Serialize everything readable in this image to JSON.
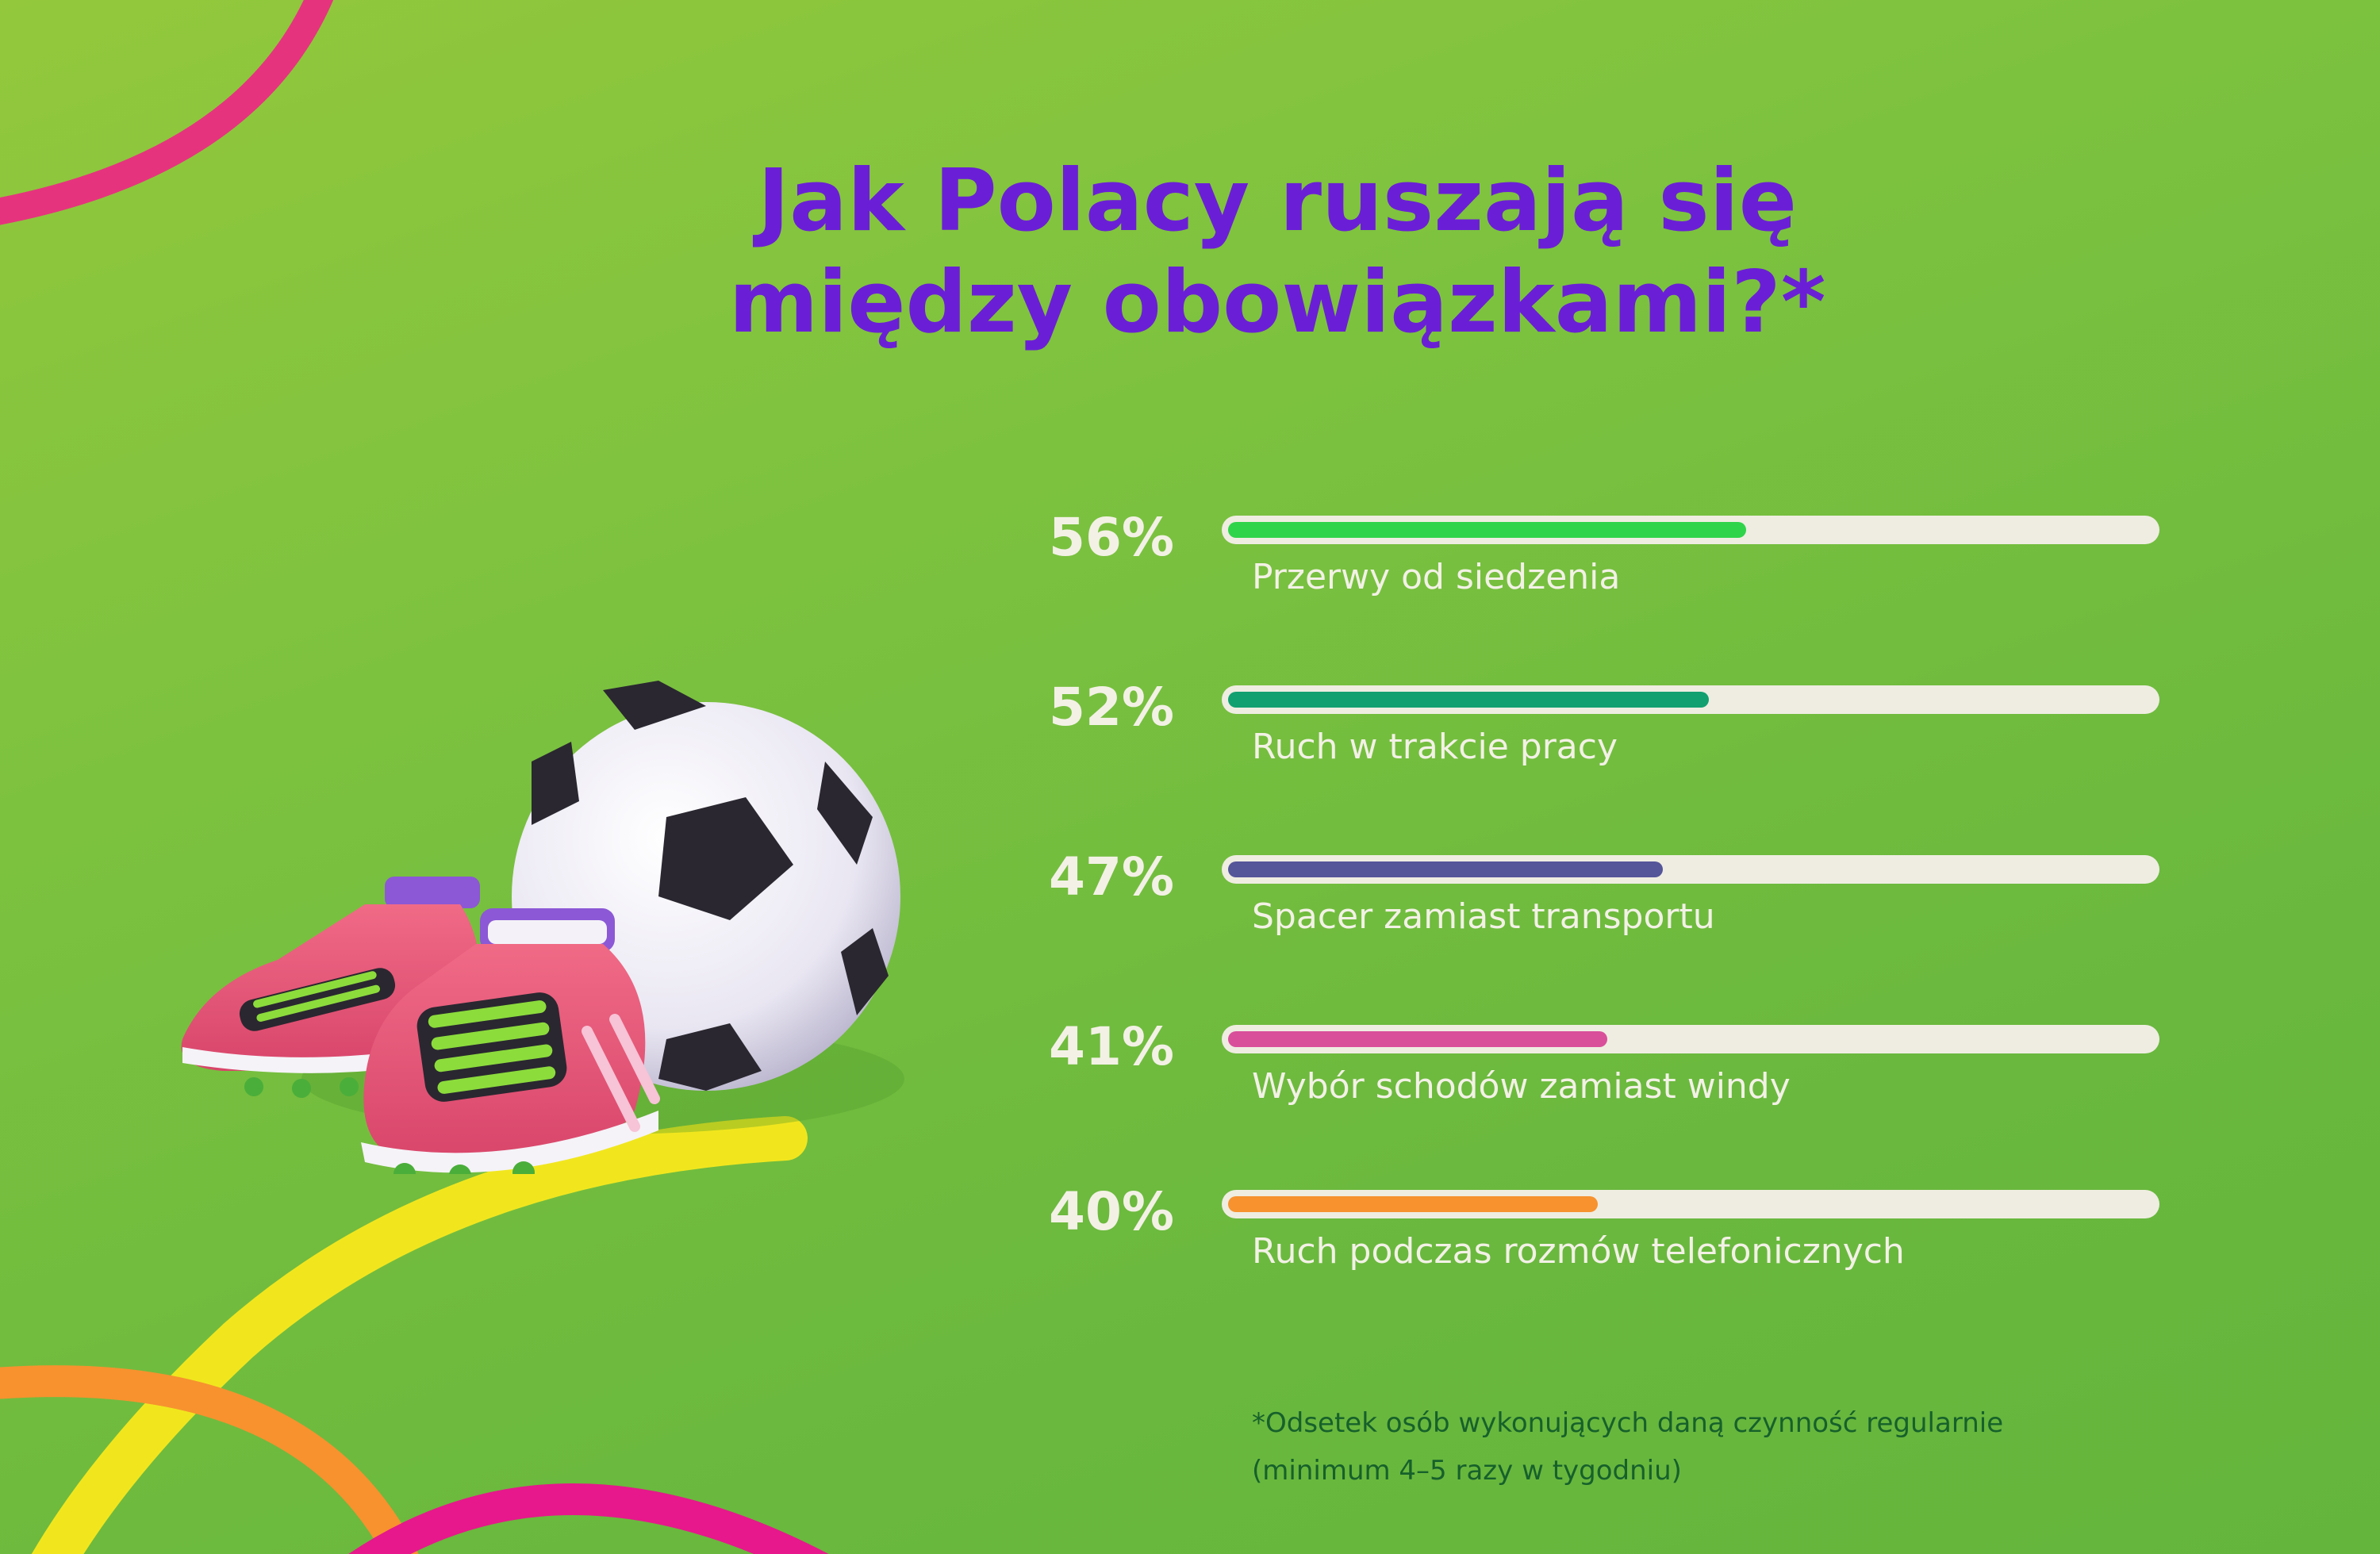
{
  "title": {
    "line1": "Jak Polacy ruszają się",
    "line2": "między obowiązkami?*"
  },
  "chart_data": {
    "type": "bar",
    "orientation": "horizontal",
    "categories": [
      "Przerwy od siedzenia",
      "Ruch w trakcie pracy",
      "Spacer zamiast transportu",
      "Wybór schodów zamiast windy",
      "Ruch podczas rozmów telefonicznych"
    ],
    "values": [
      56,
      52,
      47,
      41,
      40
    ],
    "value_labels": [
      "56%",
      "52%",
      "47%",
      "41%",
      "40%"
    ],
    "bar_colors": [
      "#2fd44a",
      "#12a070",
      "#55559a",
      "#d94f9a",
      "#f7922e"
    ],
    "xlim": [
      0,
      100
    ],
    "grid": false,
    "legend": "none"
  },
  "footnote": {
    "line1": "*Odsetek osób wykonujących daną czynność regularnie",
    "line2": "(minimum 4–5 razy w tygodniu)"
  },
  "illustration": {
    "objects": [
      "football-icon",
      "football-boots-icon"
    ]
  },
  "colors": {
    "title": "#6a1fd6",
    "text": "#f3f1e6",
    "track": "#efede2",
    "footnote": "#16612b"
  }
}
